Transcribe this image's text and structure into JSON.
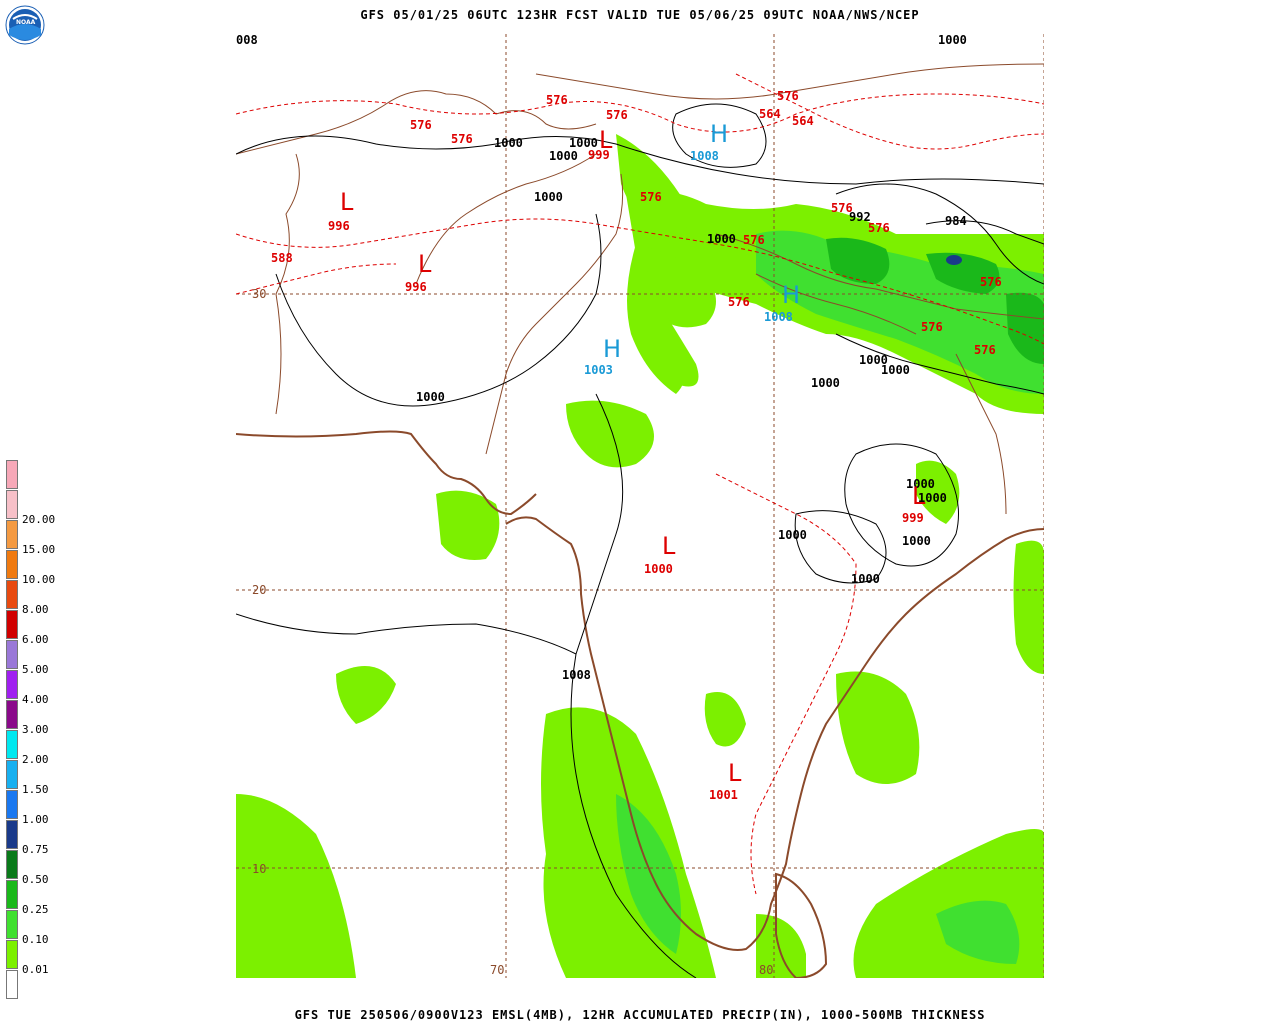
{
  "title": "GFS 05/01/25 06UTC 123HR FCST VALID TUE 05/06/25 09UTC NOAA/NWS/NCEP",
  "footer": "GFS TUE 250506/0900V123 EMSL(4MB), 12HR ACCUMULATED PRECIP(IN), 1000-500MB THICKNESS",
  "logo": {
    "text": "NOAA",
    "icon": "noaa-logo-icon"
  },
  "legend": {
    "items": [
      {
        "label": "",
        "color": "#f7a8b8"
      },
      {
        "label": "20.00",
        "color": "#f7c0c8"
      },
      {
        "label": "15.00",
        "color": "#f49a42"
      },
      {
        "label": "10.00",
        "color": "#f07a10"
      },
      {
        "label": "8.00",
        "color": "#e84a10"
      },
      {
        "label": "6.00",
        "color": "#d00000"
      },
      {
        "label": "5.00",
        "color": "#9a78d8"
      },
      {
        "label": "4.00",
        "color": "#a020f0"
      },
      {
        "label": "3.00",
        "color": "#8a0a8a"
      },
      {
        "label": "2.00",
        "color": "#00e8f0"
      },
      {
        "label": "1.50",
        "color": "#18b0f0"
      },
      {
        "label": "1.00",
        "color": "#1a78f0"
      },
      {
        "label": "0.75",
        "color": "#1a3a8a"
      },
      {
        "label": "0.50",
        "color": "#0a7a1a"
      },
      {
        "label": "0.25",
        "color": "#1ab81a"
      },
      {
        "label": "0.10",
        "color": "#40e030"
      },
      {
        "label": "0.01",
        "color": "#7cf000"
      },
      {
        "label": "",
        "color": "#ffffff"
      }
    ]
  },
  "map": {
    "grid_labels": {
      "lat_30": "30",
      "lat_20": "20",
      "lat_10": "10",
      "lon_70": "70",
      "lon_80": "80"
    },
    "isobar_labels": [
      {
        "id": "p1",
        "text": "1000"
      },
      {
        "id": "p2",
        "text": "1000"
      },
      {
        "id": "p3",
        "text": "1000"
      },
      {
        "id": "p4",
        "text": "1000"
      },
      {
        "id": "p5",
        "text": "1000"
      },
      {
        "id": "p6",
        "text": "1000"
      },
      {
        "id": "p7",
        "text": "1000"
      },
      {
        "id": "p8",
        "text": "1000"
      },
      {
        "id": "p9",
        "text": "1000"
      },
      {
        "id": "p10",
        "text": "1000"
      },
      {
        "id": "p11",
        "text": "1000"
      },
      {
        "id": "p12",
        "text": "1000"
      },
      {
        "id": "p13",
        "text": "1000"
      },
      {
        "id": "p14",
        "text": "1000"
      },
      {
        "id": "p15",
        "text": "1000"
      },
      {
        "id": "p16",
        "text": "1008"
      },
      {
        "id": "p17",
        "text": "992"
      },
      {
        "id": "p18",
        "text": "984"
      },
      {
        "id": "p19",
        "text": "008"
      }
    ],
    "thickness_labels": [
      {
        "id": "t1",
        "text": "576"
      },
      {
        "id": "t2",
        "text": "576"
      },
      {
        "id": "t3",
        "text": "576"
      },
      {
        "id": "t4",
        "text": "576"
      },
      {
        "id": "t5",
        "text": "576"
      },
      {
        "id": "t6",
        "text": "564"
      },
      {
        "id": "t7",
        "text": "564"
      },
      {
        "id": "t8",
        "text": "576"
      },
      {
        "id": "t9",
        "text": "576"
      },
      {
        "id": "t10",
        "text": "576"
      },
      {
        "id": "t11",
        "text": "576"
      },
      {
        "id": "t12",
        "text": "576"
      },
      {
        "id": "t13",
        "text": "576"
      },
      {
        "id": "t14",
        "text": "576"
      },
      {
        "id": "t15",
        "text": "576"
      },
      {
        "id": "t16",
        "text": "588"
      }
    ],
    "centers": [
      {
        "id": "c1",
        "type": "L",
        "value": "996"
      },
      {
        "id": "c2",
        "type": "L",
        "value": "996"
      },
      {
        "id": "c3",
        "type": "L",
        "value": "999"
      },
      {
        "id": "c4",
        "type": "H",
        "value": "1008"
      },
      {
        "id": "c5",
        "type": "H",
        "value": "1003"
      },
      {
        "id": "c6",
        "type": "H",
        "value": "1008"
      },
      {
        "id": "c7",
        "type": "L",
        "value": "1000"
      },
      {
        "id": "c8",
        "type": "L",
        "value": "999"
      },
      {
        "id": "c9",
        "type": "L",
        "value": "1001"
      }
    ],
    "colors": {
      "coast": "#8b4a2b",
      "isobar": "#000000",
      "thickness": "#dd0000",
      "precip_light": "#7cf000",
      "precip_med": "#40e030",
      "precip_heavy": "#1ab81a",
      "precip_dark": "#0a7a1a",
      "precip_blue": "#1a3a8a"
    }
  }
}
